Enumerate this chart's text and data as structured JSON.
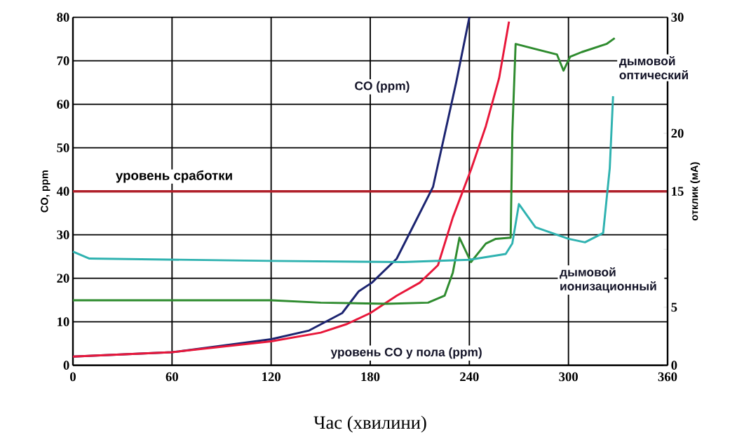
{
  "chart_data": {
    "type": "line",
    "xlabel": "Час (хвилини)",
    "ylabel": "CO, ppm",
    "y2label": "отклик (мА)",
    "xlim": [
      0,
      360
    ],
    "xticks": [
      0,
      60,
      120,
      180,
      240,
      300,
      360
    ],
    "ylim": [
      0,
      80
    ],
    "yticks": [
      0,
      10,
      20,
      30,
      40,
      50,
      60,
      70,
      80
    ],
    "y2lim": [
      0,
      30
    ],
    "y2ticks": [
      0,
      5,
      {
        "value": 10,
        "label": null
      },
      15,
      20,
      {
        "value": 25,
        "label": null
      },
      30
    ],
    "grid": true,
    "series": [
      {
        "color": "#1c2470",
        "x": [
          0,
          60,
          120,
          143,
          163,
          173,
          181,
          196,
          206,
          218,
          232,
          240
        ],
        "values": [
          2,
          3,
          6,
          8,
          12,
          17,
          19,
          24.5,
          32,
          41,
          65,
          80
        ]
      },
      {
        "color": "#e8173a",
        "x": [
          0,
          60,
          120,
          150,
          166,
          180,
          196,
          210,
          221,
          230,
          241,
          250,
          258,
          264
        ],
        "values": [
          2,
          3,
          5.5,
          7.5,
          9.5,
          12,
          16,
          19,
          23,
          34,
          45,
          55,
          66,
          79
        ]
      },
      {
        "color": "#2e8b2e",
        "axis": "y2",
        "x": [
          0,
          60,
          120,
          150,
          190,
          215,
          225,
          230,
          234,
          241,
          250,
          256,
          265,
          266,
          268,
          293,
          297,
          301,
          308,
          323,
          328
        ],
        "values": [
          5.6,
          5.6,
          5.6,
          5.4,
          5.3,
          5.4,
          6,
          8,
          11,
          8.9,
          10.5,
          10.9,
          11,
          20,
          27.7,
          26.8,
          25.4,
          26.6,
          27,
          27.7,
          28.2
        ]
      },
      {
        "color": "#2fb2b0",
        "axis": "y2",
        "x": [
          0,
          10,
          120,
          200,
          240,
          262,
          266,
          270,
          280,
          300,
          310,
          321,
          325,
          327
        ],
        "values": [
          9.8,
          9.2,
          9.0,
          8.9,
          9.1,
          9.6,
          10.5,
          13.9,
          11.9,
          10.9,
          10.6,
          11.4,
          17,
          23.2
        ]
      }
    ],
    "ref_lines": [
      {
        "axis": "y",
        "value": 40,
        "label": "уровень сработки",
        "color": "#b0202a"
      }
    ],
    "annotations": [
      "CO (ppm)",
      "уровень CO у пола (ppm)",
      "дымовой оптический",
      "дымовой ионизационный"
    ]
  }
}
